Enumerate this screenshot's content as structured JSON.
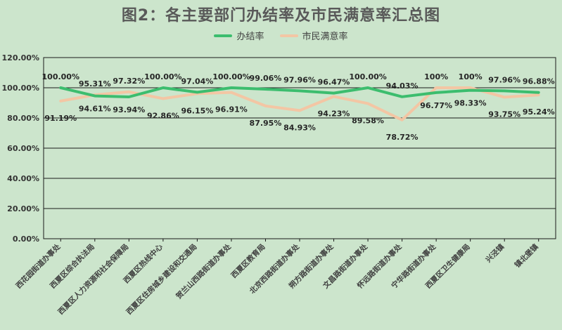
{
  "title": "图2：各主要部门办结率及市民满意率汇总图",
  "colors": {
    "background": "#cce5cc",
    "series1": "#3cbd6e",
    "series2": "#f3c6a4",
    "grid": "#000000"
  },
  "chart_data": {
    "type": "line",
    "title": "图2：各主要部门办结率及市民满意率汇总图",
    "ylim": [
      0,
      120
    ],
    "yticks": [
      0,
      20,
      40,
      60,
      80,
      100,
      120
    ],
    "ytick_labels": [
      "0.00%",
      "20.00%",
      "40.00%",
      "60.00%",
      "80.00%",
      "100.00%",
      "120.00%"
    ],
    "grid": "horizontal",
    "legend_position": "top-center",
    "categories": [
      "西花园街道办事处",
      "西夏区综合执法局",
      "西夏区人力资源和社会保障局",
      "西夏区热线中心",
      "西夏区住房城乡建设和交通局",
      "贺兰山西路街道办事处",
      "西夏区教育局",
      "北京西路街道办事处",
      "朔方路街道办事处",
      "文昌路街道办事处",
      "怀远路街道办事处",
      "宁华路街道办事处",
      "西夏区卫生健康局",
      "兴泾镇",
      "镇北堡镇"
    ],
    "series": [
      {
        "name": "办结率",
        "values": [
          100.0,
          94.61,
          93.94,
          100.0,
          97.04,
          100.0,
          99.06,
          97.96,
          96.47,
          100.0,
          94.03,
          96.77,
          98.33,
          97.96,
          96.88
        ],
        "labels": [
          "100.00%",
          "94.61%",
          "93.94%",
          "100.00%",
          "97.04%",
          "100.00%",
          "99.06%",
          "97.96%",
          "96.47%",
          "100.00%",
          "94.03%",
          "96.77%",
          "98.33%",
          "97.96%",
          "96.88%"
        ]
      },
      {
        "name": "市民满意率",
        "values": [
          91.19,
          95.31,
          97.32,
          92.86,
          96.15,
          96.91,
          87.95,
          84.93,
          94.23,
          89.58,
          78.72,
          100.0,
          100.0,
          93.75,
          95.24
        ],
        "labels": [
          "91.19%",
          "95.31%",
          "97.32%",
          "92.86%",
          "96.15%",
          "96.91%",
          "87.95%",
          "84.93%",
          "94.23%",
          "89.58%",
          "78.72%",
          "100%",
          "100%",
          "93.75%",
          "95.24%"
        ]
      }
    ]
  }
}
